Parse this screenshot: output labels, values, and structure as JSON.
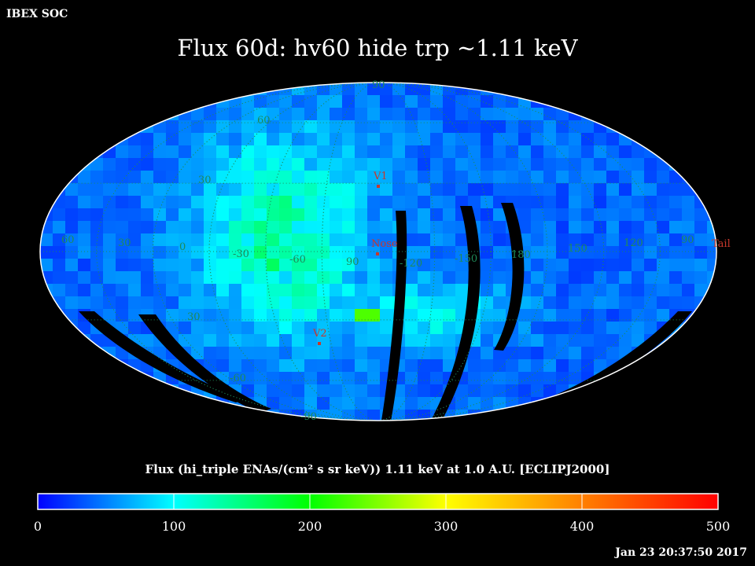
{
  "brand": "IBEX SOC",
  "title": "Flux   60d: hv60 hide trp ~1.11 keV",
  "timestamp": "Jan 23 20:37:50 2017",
  "colorbar": {
    "title": "Flux (hi_triple ENAs/(cm² s sr keV))  1.11 keV at 1.0 A.U. [ECLIPJ2000]",
    "ticks": [
      "0",
      "100",
      "200",
      "300",
      "400",
      "500"
    ],
    "colors": [
      "#0000ff",
      "#00ffff",
      "#00ff00",
      "#ffff00",
      "#ff0000"
    ]
  },
  "chart_data": {
    "type": "heatmap",
    "projection": "mollweide",
    "frame": "ECLIPJ2000",
    "zlim": [
      0,
      500
    ],
    "longitude_labels": [
      "60",
      "30",
      "0",
      "-30",
      "-60",
      "90",
      "-120",
      "-150",
      "180",
      "150",
      "120",
      "90"
    ],
    "latitude_labels": [
      "90",
      "60",
      "30",
      "30",
      "-60",
      "-90"
    ],
    "markers": [
      {
        "name": "V1",
        "lon": 255,
        "lat": 34
      },
      {
        "name": "Nose",
        "lon": 255,
        "lat": 5
      },
      {
        "name": "V2",
        "lon": 290,
        "lat": -32
      },
      {
        "name": "Tail",
        "lon": 75,
        "lat": -5
      }
    ],
    "features": {
      "background_flux": 40,
      "bright_region_flux": 150,
      "peak_flux": 230,
      "data_gaps": "black curved stripes"
    },
    "colors": {
      "grid": "#1e8a5a",
      "marker": "#c8382c",
      "gap": "#000000"
    }
  }
}
